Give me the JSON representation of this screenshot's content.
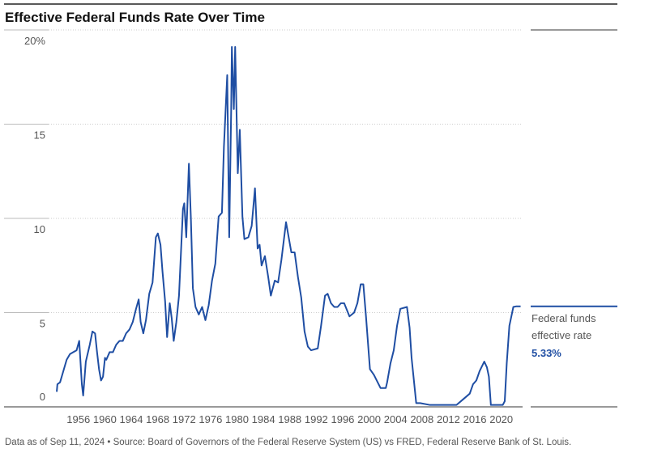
{
  "chart_data": {
    "type": "line",
    "title": "Effective Federal Funds Rate Over Time",
    "x": [
      1954.5,
      1954.6,
      1955,
      1955.5,
      1956,
      1956.5,
      1957,
      1957.5,
      1957.9,
      1958.3,
      1958.5,
      1958.9,
      1959.5,
      1959.9,
      1960.3,
      1960.6,
      1960.9,
      1961.2,
      1961.5,
      1961.8,
      1962,
      1962.5,
      1963,
      1963.5,
      1964,
      1964.5,
      1965,
      1965.5,
      1966,
      1966.5,
      1966.9,
      1967.2,
      1967.6,
      1968,
      1968.5,
      1969,
      1969.5,
      1969.8,
      1970.2,
      1970.5,
      1970.9,
      1971.2,
      1971.6,
      1971.9,
      1972.2,
      1972.6,
      1973,
      1973.6,
      1973.8,
      1974.1,
      1974.5,
      1974.8,
      1975.1,
      1975.5,
      1976,
      1976.5,
      1977,
      1977.5,
      1978,
      1978.5,
      1979,
      1979.5,
      1979.8,
      1980.3,
      1980.6,
      1980.9,
      1981.0,
      1981.3,
      1981.5,
      1981.9,
      1982.2,
      1982.6,
      1982.9,
      1983.5,
      1984,
      1984.5,
      1984.9,
      1985.2,
      1985.5,
      1986,
      1986.5,
      1986.9,
      1987.5,
      1988,
      1988.5,
      1989.2,
      1989.6,
      1990,
      1990.5,
      1991,
      1991.5,
      1992,
      1992.5,
      1993,
      1994,
      1994.5,
      1995.1,
      1995.5,
      1996,
      1996.5,
      1997,
      1997.5,
      1998,
      1998.8,
      1999.5,
      2000,
      2000.5,
      2000.9,
      2001.3,
      2001.9,
      2002.5,
      2003.5,
      2004.3,
      2004.5,
      2005,
      2005.5,
      2006,
      2006.5,
      2007.5,
      2007.9,
      2008.2,
      2008.9,
      2009.5,
      2011,
      2013,
      2015,
      2016,
      2017,
      2017.5,
      2018,
      2018.5,
      2019.2,
      2019.6,
      2019.9,
      2020.2,
      2021,
      2022,
      2022.3,
      2022.6,
      2023,
      2023.3,
      2023.6,
      2024.0,
      2024.7
    ],
    "series": [
      {
        "name": "Federal funds effective rate",
        "color": "#1f4ea3",
        "values": [
          0.8,
          1.2,
          1.3,
          1.9,
          2.5,
          2.8,
          2.9,
          3.0,
          3.5,
          1.2,
          0.6,
          2.4,
          3.3,
          4.0,
          3.9,
          2.9,
          2.0,
          1.4,
          1.6,
          2.6,
          2.5,
          2.9,
          2.9,
          3.3,
          3.5,
          3.5,
          3.9,
          4.1,
          4.5,
          5.2,
          5.7,
          4.5,
          3.9,
          4.6,
          6.0,
          6.6,
          9.0,
          9.2,
          8.6,
          7.2,
          5.6,
          3.7,
          5.5,
          4.7,
          3.5,
          4.5,
          5.9,
          10.5,
          10.8,
          9.0,
          12.9,
          10.0,
          6.3,
          5.3,
          4.9,
          5.3,
          4.6,
          5.4,
          6.7,
          7.6,
          10.1,
          10.3,
          13.8,
          17.6,
          9.0,
          15.8,
          19.1,
          15.8,
          19.1,
          12.4,
          14.7,
          10.1,
          8.9,
          9.0,
          9.6,
          11.6,
          8.4,
          8.6,
          7.5,
          8.0,
          6.9,
          5.9,
          6.7,
          6.6,
          7.8,
          9.8,
          9.0,
          8.2,
          8.2,
          6.9,
          5.8,
          4.0,
          3.2,
          3.0,
          3.1,
          4.3,
          5.9,
          6.0,
          5.5,
          5.3,
          5.3,
          5.5,
          5.5,
          4.8,
          5.0,
          5.5,
          6.5,
          6.5,
          4.8,
          2.0,
          1.7,
          1.0,
          1.0,
          1.3,
          2.3,
          3.0,
          4.3,
          5.2,
          5.3,
          4.2,
          2.6,
          0.2,
          0.2,
          0.1,
          0.1,
          0.1,
          0.4,
          0.7,
          1.2,
          1.4,
          1.9,
          2.4,
          2.1,
          1.6,
          0.1,
          0.1,
          0.1,
          0.3,
          2.3,
          4.3,
          4.8,
          5.3,
          5.33,
          5.33
        ]
      }
    ],
    "latest_value_label": "5.33%",
    "xlim": [
      1954.25,
      2025
    ],
    "xticks": [
      1956,
      1960,
      1964,
      1968,
      1972,
      1976,
      1980,
      1984,
      1988,
      1992,
      1996,
      2000,
      2004,
      2008,
      2012,
      2016,
      2020
    ],
    "ylim": [
      0,
      20
    ],
    "yticks": [
      0,
      5,
      10,
      15,
      {
        "value": 20,
        "label": "20%"
      }
    ],
    "grid": true,
    "footnote": "Data as of Sep 11, 2024 • Source: Board of Governors of the Federal Reserve System (US) vs FRED, Federal Reserve Bank of St. Louis."
  }
}
